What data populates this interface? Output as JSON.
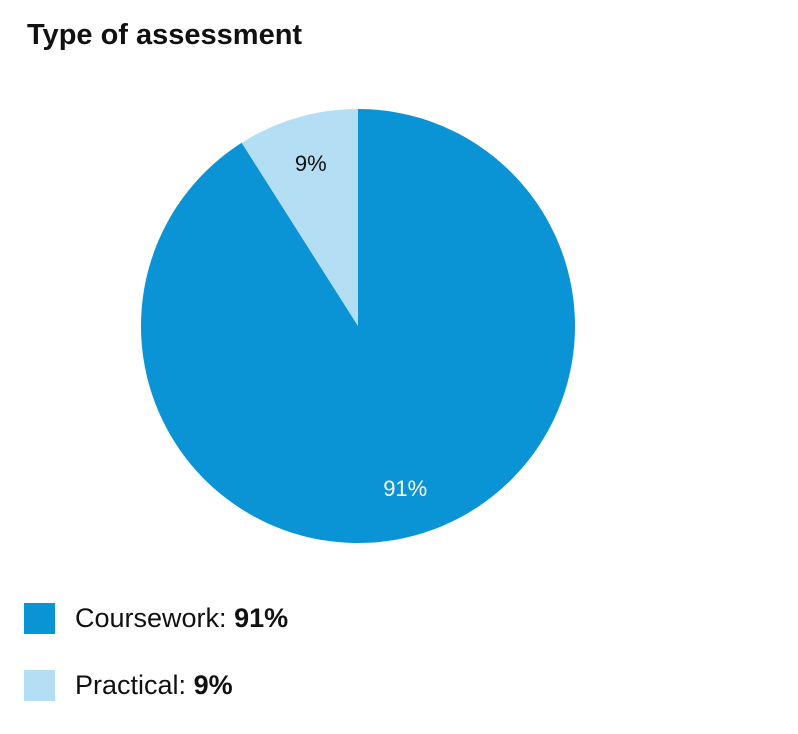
{
  "chart_data": {
    "type": "pie",
    "title": "Type of assessment",
    "start_angle_deg": 0,
    "direction": "clockwise",
    "slices": [
      {
        "label": "Coursework",
        "value": 91,
        "value_label": "91%",
        "color": "#0a93d5",
        "label_color": "#ffffff"
      },
      {
        "label": "Practical",
        "value": 9,
        "value_label": "9%",
        "color": "#b3def3",
        "label_color": "#111111"
      }
    ],
    "legend": {
      "placement": "bottom-left",
      "items": [
        {
          "label": "Coursework:",
          "value": "91%",
          "color": "#0a93d5"
        },
        {
          "label": "Practical:",
          "value": "9%",
          "color": "#b3def3"
        }
      ]
    }
  }
}
